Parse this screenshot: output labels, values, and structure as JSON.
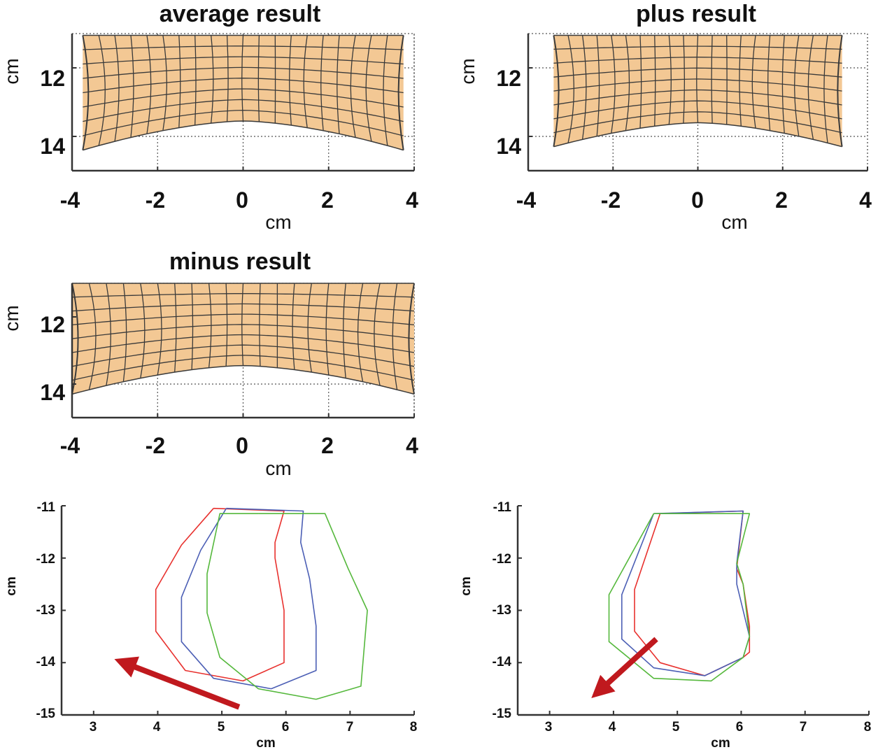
{
  "colors": {
    "mesh_fill": "#f3c894",
    "mesh_line": "#3a3a3a",
    "axis": "#333333",
    "grid": "#555555",
    "arrow": "#c0191e",
    "series_red": "#e8312e",
    "series_blue": "#4c5fb5",
    "series_green": "#55b83c"
  },
  "chart_data": [
    {
      "type": "mesh",
      "title": "average result",
      "xlabel": "cm",
      "ylabel": "cm",
      "xlim": [
        -4,
        4
      ],
      "ylim": [
        11,
        15
      ],
      "xticks": [
        -4,
        -2,
        0,
        2,
        4
      ],
      "yticks": [
        12,
        14
      ],
      "xtick_labels": [
        "-4",
        "-2",
        "0",
        "2",
        "4"
      ],
      "ytick_labels": [
        "12",
        "14"
      ],
      "grid": true,
      "mesh": {
        "half_width": 3.75,
        "top": 11.05,
        "bottom_center": 13.55,
        "bottom_edge": 14.4,
        "cols": 20,
        "rows": 8
      }
    },
    {
      "type": "mesh",
      "title": "plus result",
      "xlabel": "cm",
      "ylabel": "cm",
      "xlim": [
        -4,
        4
      ],
      "ylim": [
        11,
        15
      ],
      "xticks": [
        -4,
        -2,
        0,
        2,
        4
      ],
      "yticks": [
        12,
        14
      ],
      "xtick_labels": [
        "-4",
        "-2",
        "0",
        "2",
        "4"
      ],
      "ytick_labels": [
        "12",
        "14"
      ],
      "grid": true,
      "mesh": {
        "half_width": 3.4,
        "top": 11.05,
        "bottom_center": 13.6,
        "bottom_edge": 14.3,
        "cols": 20,
        "rows": 8
      }
    },
    {
      "type": "mesh",
      "title": "minus result",
      "xlabel": "cm",
      "ylabel": "cm",
      "xlim": [
        -4,
        4
      ],
      "ylim": [
        11,
        15
      ],
      "xticks": [
        -4,
        -2,
        0,
        2,
        4
      ],
      "yticks": [
        12,
        14
      ],
      "xtick_labels": [
        "-4",
        "-2",
        "0",
        "2",
        "4"
      ],
      "ytick_labels": [
        "12",
        "14"
      ],
      "grid": true,
      "mesh": {
        "half_width": 4.0,
        "top": 11.0,
        "bottom_center": 13.45,
        "bottom_edge": 14.3,
        "cols": 20,
        "rows": 8
      }
    },
    {
      "type": "line",
      "title": "",
      "xlabel": "cm",
      "ylabel": "cm",
      "xlim": [
        2.5,
        8
      ],
      "ylim": [
        -15,
        -11
      ],
      "xticks": [
        3,
        4,
        5,
        6,
        7,
        8
      ],
      "yticks": [
        -11,
        -12,
        -13,
        -14,
        -15
      ],
      "xtick_labels": [
        "3",
        "4",
        "5",
        "6",
        "7",
        "8"
      ],
      "ytick_labels": [
        "-11",
        "-12",
        "-13",
        "-14",
        "-15"
      ],
      "grid": false,
      "series": [
        {
          "name": "red",
          "color": "#e8312e",
          "x": [
            4.87,
            5.97,
            5.83,
            5.83,
            5.97,
            5.97,
            5.33,
            4.43,
            3.97,
            3.97,
            4.37,
            4.87
          ],
          "y": [
            -11.05,
            -11.1,
            -11.7,
            -12.0,
            -13.0,
            -14.0,
            -14.35,
            -14.15,
            -13.4,
            -12.6,
            -11.75,
            -11.05
          ]
        },
        {
          "name": "blue",
          "color": "#4c5fb5",
          "x": [
            5.07,
            6.27,
            6.23,
            6.37,
            6.47,
            6.47,
            5.77,
            4.87,
            4.37,
            4.37,
            4.67,
            5.07
          ],
          "y": [
            -11.05,
            -11.1,
            -11.7,
            -12.4,
            -13.3,
            -14.15,
            -14.5,
            -14.3,
            -13.6,
            -12.75,
            -11.85,
            -11.05
          ]
        },
        {
          "name": "green",
          "color": "#55b83c",
          "x": [
            5.57,
            6.61,
            6.97,
            7.27,
            7.17,
            6.47,
            5.57,
            4.97,
            4.77,
            4.77,
            4.97,
            5.57
          ],
          "y": [
            -11.15,
            -11.15,
            -12.2,
            -13.0,
            -14.45,
            -14.7,
            -14.5,
            -13.9,
            -13.05,
            -12.3,
            -11.15,
            -11.15
          ]
        }
      ],
      "arrow": {
        "from": [
          5.27,
          -14.85
        ],
        "to": [
          3.47,
          -14.0
        ]
      }
    },
    {
      "type": "line",
      "title": "",
      "xlabel": "cm",
      "ylabel": "cm",
      "xlim": [
        2.5,
        8
      ],
      "ylim": [
        -15,
        -11
      ],
      "xticks": [
        3,
        4,
        5,
        6,
        7,
        8
      ],
      "yticks": [
        -11,
        -12,
        -13,
        -14,
        -15
      ],
      "xtick_labels": [
        "3",
        "4",
        "5",
        "6",
        "7",
        "8"
      ],
      "ytick_labels": [
        "-11",
        "-12",
        "-13",
        "-14",
        "-15"
      ],
      "grid": false,
      "series": [
        {
          "name": "red",
          "color": "#e8312e",
          "x": [
            4.73,
            6.03,
            5.93,
            6.03,
            6.13,
            6.13,
            6.03,
            5.43,
            4.73,
            4.33,
            4.33,
            4.73
          ],
          "y": [
            -11.15,
            -11.1,
            -12.2,
            -12.5,
            -13.3,
            -13.8,
            -13.9,
            -14.25,
            -14.0,
            -13.4,
            -12.6,
            -11.15
          ]
        },
        {
          "name": "blue",
          "color": "#4c5fb5",
          "x": [
            4.63,
            6.03,
            5.93,
            5.93,
            6.13,
            6.03,
            5.43,
            4.63,
            4.13,
            4.13,
            4.63
          ],
          "y": [
            -11.15,
            -11.1,
            -12.1,
            -12.5,
            -13.5,
            -13.9,
            -14.25,
            -14.1,
            -13.55,
            -12.7,
            -11.15
          ]
        },
        {
          "name": "green",
          "color": "#55b83c",
          "x": [
            4.63,
            6.13,
            5.93,
            6.03,
            6.13,
            6.03,
            5.53,
            4.63,
            3.93,
            3.93,
            4.63
          ],
          "y": [
            -11.15,
            -11.15,
            -12.1,
            -12.5,
            -13.5,
            -13.9,
            -14.35,
            -14.3,
            -13.6,
            -12.7,
            -11.15
          ]
        }
      ],
      "arrow": {
        "from": [
          4.67,
          -13.55
        ],
        "to": [
          3.77,
          -14.55
        ]
      }
    }
  ]
}
